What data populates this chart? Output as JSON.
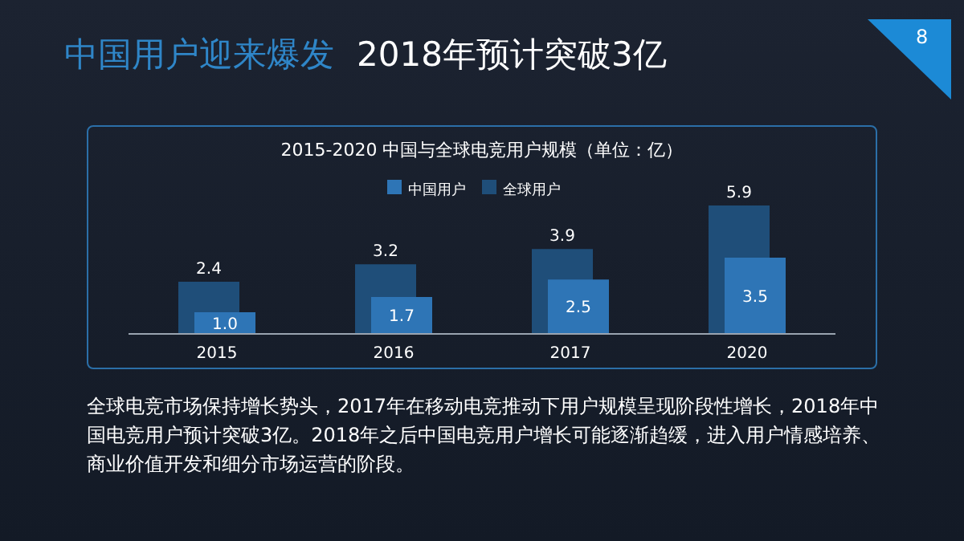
{
  "chart_data": {
    "type": "bar",
    "title": "2015-2020 中国与全球电竞用户规模（单位：亿）",
    "categories": [
      "2015",
      "2016",
      "2017",
      "2020"
    ],
    "series": [
      {
        "name": "全球用户",
        "color": "#1f4e79",
        "values": [
          2.4,
          3.2,
          3.9,
          5.9
        ],
        "value_labels": [
          "2.4",
          "3.2",
          "3.9",
          "5.9"
        ]
      },
      {
        "name": "中国用户",
        "color": "#2e75b6",
        "values": [
          1.0,
          1.7,
          2.5,
          3.5
        ],
        "value_labels": [
          "1.0",
          "1.7",
          "2.5",
          "3.5"
        ]
      }
    ],
    "legend": "top",
    "annotations": [
      "中国用户迎来爆发",
      "2018年预计突破3亿",
      "8",
      "全球电竞市场保持增长势头，2017年在移动电竞推动下用户规模呈现阶段性增长，2018年中国电竞用户预计突破3亿。2018年之后中国电竞用户增长可能逐渐趋缓，进入用户情感培养、商业价值开发和细分市场运营的阶段。"
    ]
  }
}
